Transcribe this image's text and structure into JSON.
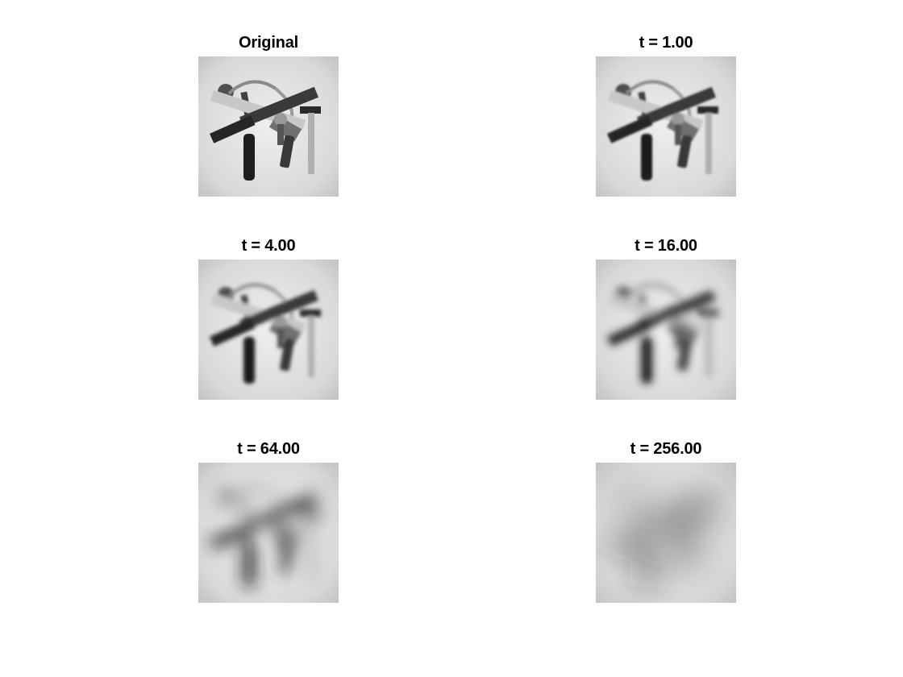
{
  "panels": [
    {
      "title": "Original",
      "image": "tools-grayscale-photo",
      "blur": 0
    },
    {
      "title": "t = 1.00",
      "image": "tools-grayscale-photo",
      "blur": 1.0
    },
    {
      "title": "t = 4.00",
      "image": "tools-grayscale-photo",
      "blur": 4.0
    },
    {
      "title": "t = 16.00",
      "image": "tools-grayscale-photo",
      "blur": 16.0
    },
    {
      "title": "t = 64.00",
      "image": "tools-grayscale-photo",
      "blur": 64.0
    },
    {
      "title": "t = 256.00",
      "image": "tools-grayscale-photo",
      "blur": 256.0
    }
  ],
  "colors": {
    "background": "#ffffff",
    "text": "#000000"
  }
}
